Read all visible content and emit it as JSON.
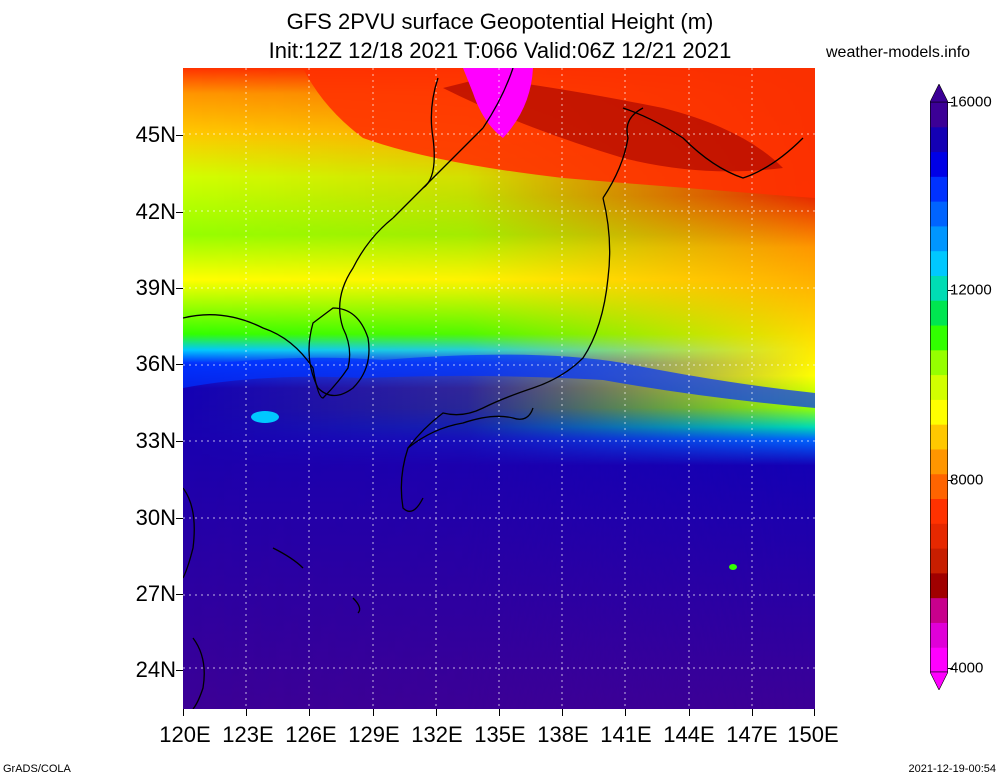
{
  "title": {
    "line1": "GFS 2PVU surface Geopotential Height (m)",
    "line2": "Init:12Z 12/18 2021 T:066 Valid:06Z 12/21 2021"
  },
  "site": "weather-models.info",
  "axes": {
    "lat_labels": [
      "45N",
      "42N",
      "39N",
      "36N",
      "33N",
      "30N",
      "27N",
      "24N"
    ],
    "lon_labels": [
      "120E",
      "123E",
      "126E",
      "129E",
      "132E",
      "135E",
      "138E",
      "141E",
      "144E",
      "147E",
      "150E"
    ]
  },
  "colorbar": {
    "labels": [
      "16000",
      "12000",
      "8000",
      "4000"
    ],
    "colors": [
      "#ff00ff",
      "#e000d8",
      "#c8008c",
      "#a00000",
      "#c81e00",
      "#e62800",
      "#ff3200",
      "#ff6400",
      "#ff9600",
      "#ffc800",
      "#ffff00",
      "#d2ff00",
      "#96ff00",
      "#32ff00",
      "#00e650",
      "#00dcb4",
      "#00c8ff",
      "#0096ff",
      "#0064ff",
      "#0032ff",
      "#0000e6",
      "#1400b4",
      "#3c0096"
    ]
  },
  "colors": {
    "low_purple": "#3c0096",
    "blue": "#0032ff",
    "green": "#32ff00",
    "yellow": "#ffff00",
    "orange": "#ffc800",
    "red": "#ff3200",
    "dark_red": "#a00000",
    "magenta": "#ff00ff"
  },
  "footer": {
    "left": "GrADS/COLA",
    "right": "2021-12-19-00:54"
  }
}
